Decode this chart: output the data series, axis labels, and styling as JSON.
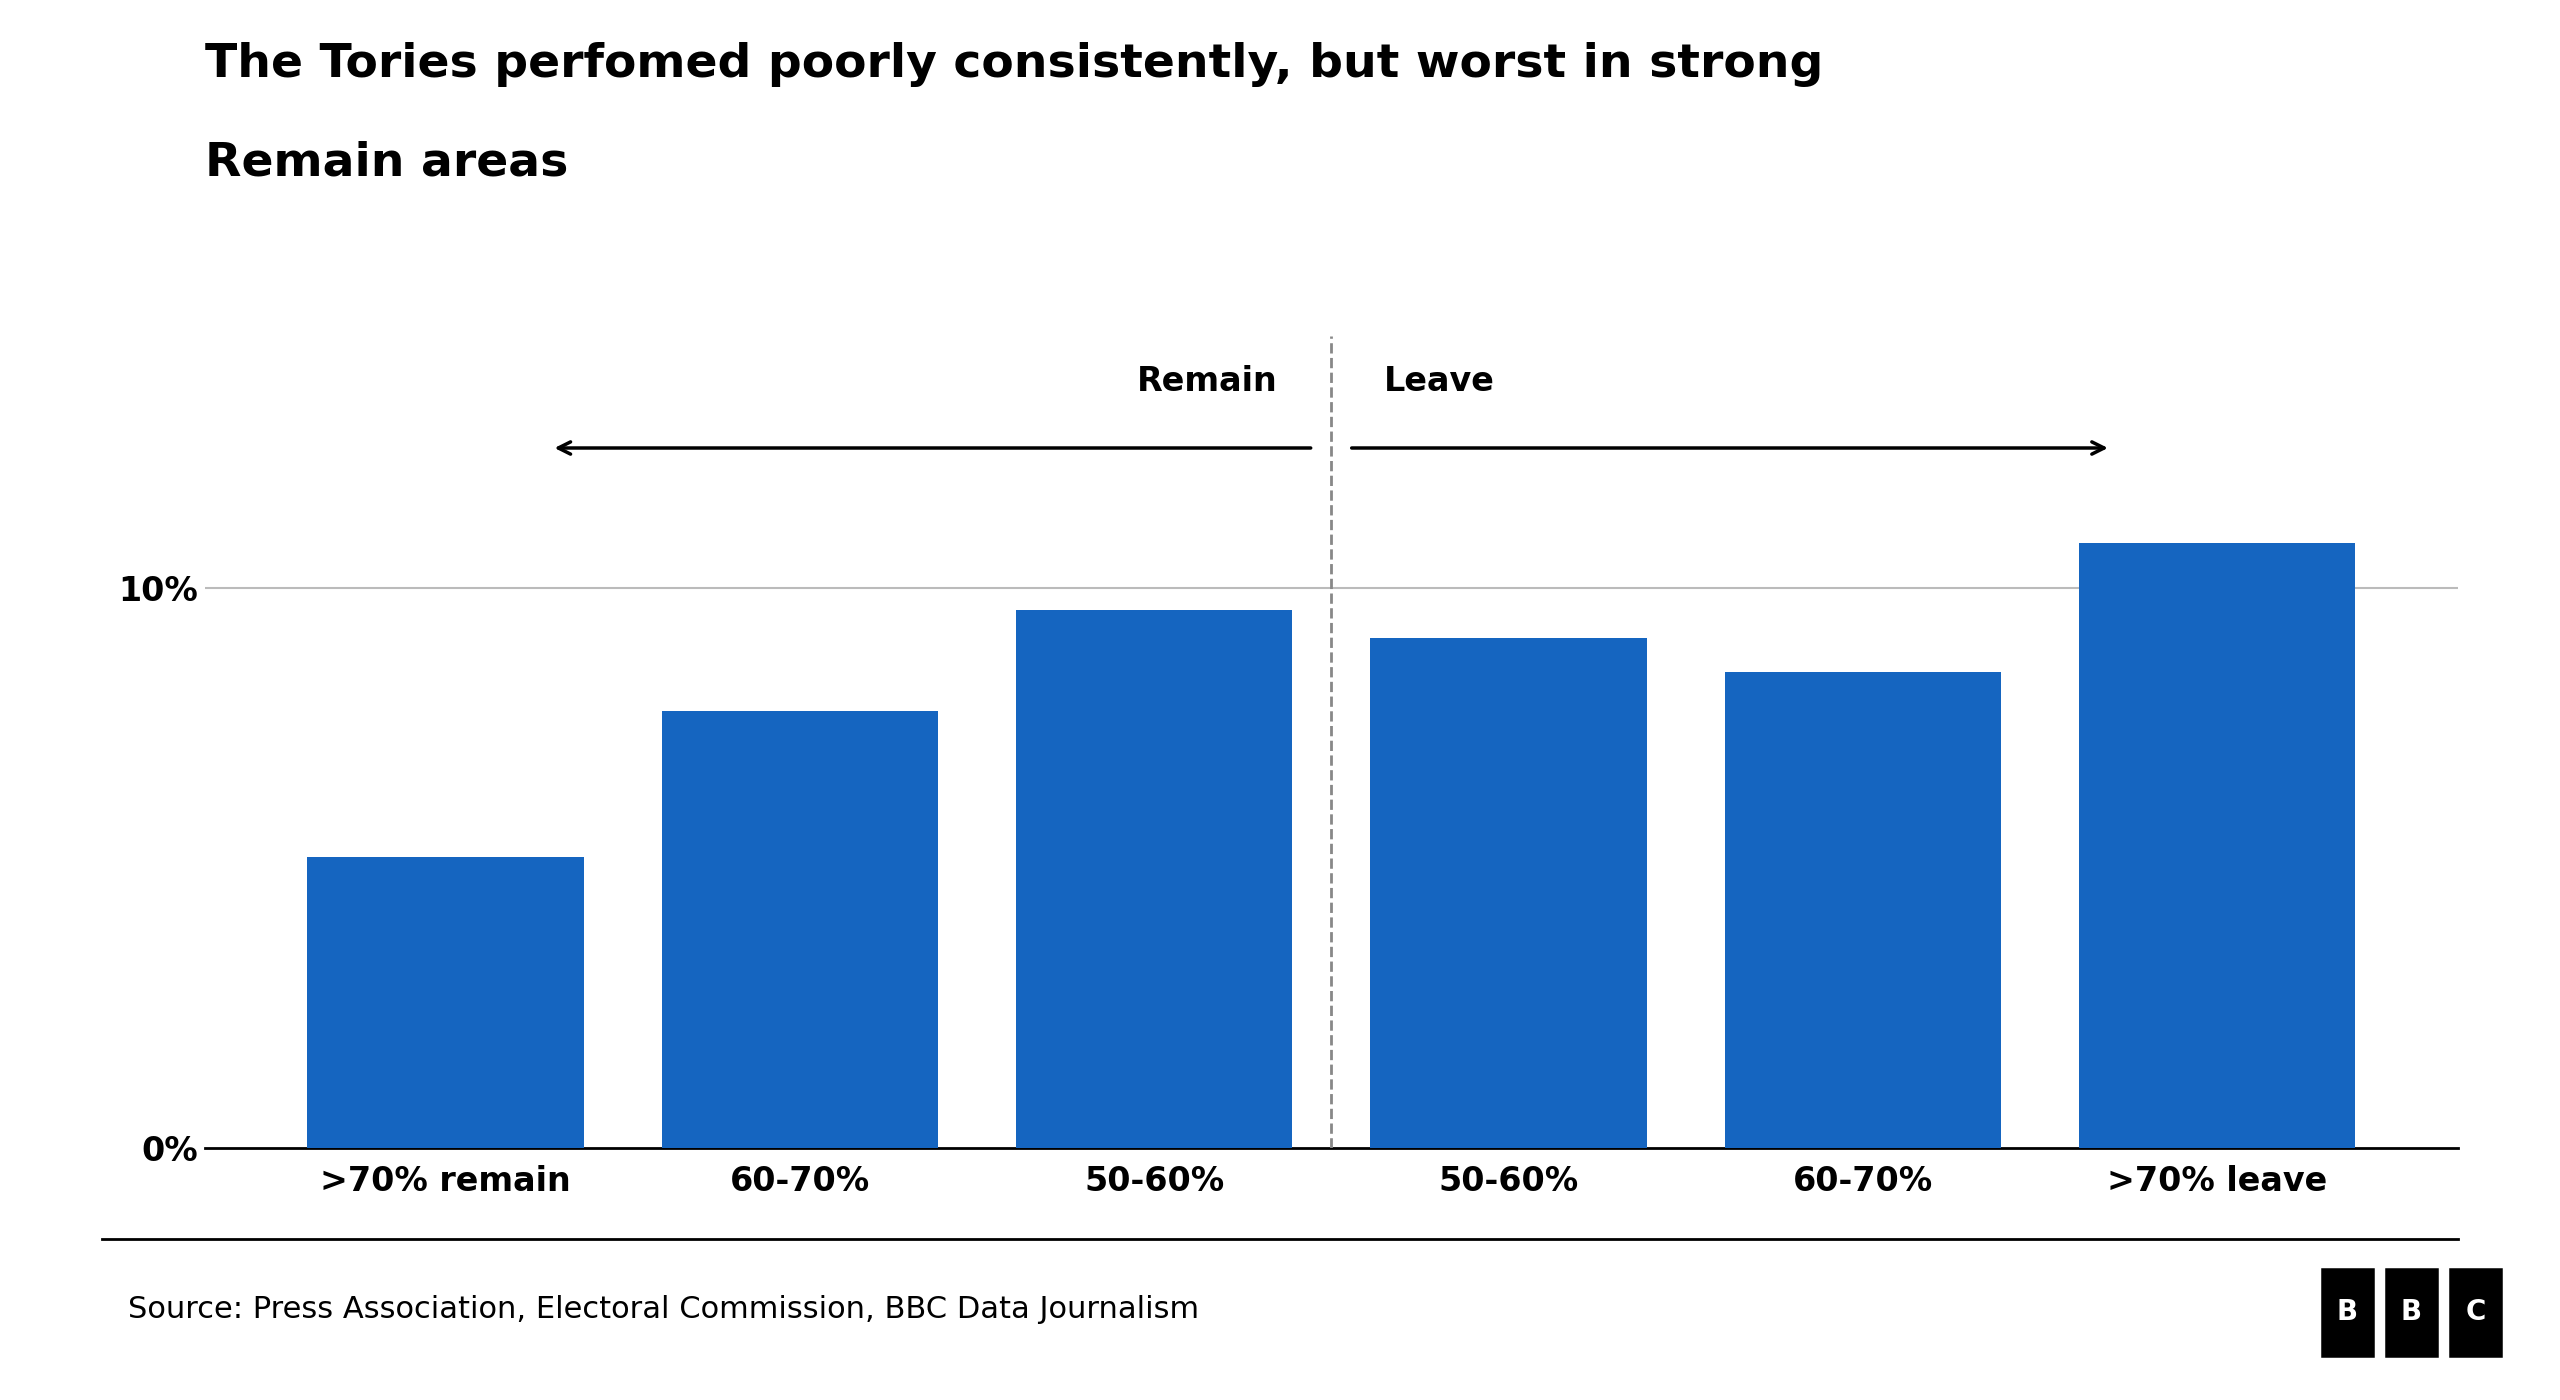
{
  "title_line1": "The Tories perfomed poorly consistently, but worst in strong",
  "title_line2": "Remain areas",
  "categories": [
    ">70% remain",
    "60-70%",
    "50-60%",
    "50-60%",
    "60-70%",
    ">70% leave"
  ],
  "values": [
    5.2,
    7.8,
    9.6,
    9.1,
    8.5,
    10.8
  ],
  "bar_color": "#1565C0",
  "yticks": [
    0,
    10
  ],
  "ytick_labels": [
    "0%",
    "10%"
  ],
  "ylim": [
    0,
    14.5
  ],
  "source_text": "Source: Press Association, Electoral Commission, BBC Data Journalism",
  "remain_label": "Remain",
  "leave_label": "Leave",
  "background_color": "#ffffff",
  "title_fontsize": 34,
  "tick_fontsize": 24,
  "source_fontsize": 22,
  "bar_width": 0.78,
  "arrow_label_fontsize": 24
}
